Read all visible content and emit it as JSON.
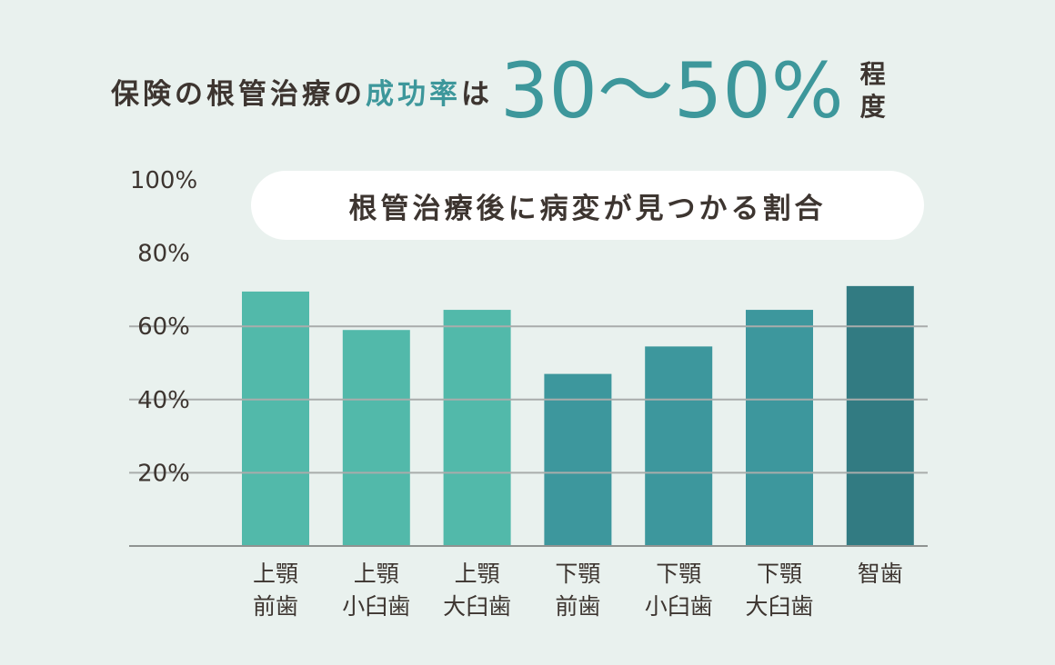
{
  "headline": {
    "prefix": "保険の根管治療の",
    "accent": "成功率",
    "particle": "は",
    "range": "30〜50%",
    "suffix_1": "程",
    "suffix_2": "度"
  },
  "colors": {
    "background": "#e9f1ee",
    "text_dark": "#3d3530",
    "accent": "#3d979b"
  },
  "chart_data": {
    "type": "bar",
    "title": "根管治療後に病変が見つかる割合",
    "categories": [
      [
        "上顎",
        "前歯"
      ],
      [
        "上顎",
        "小臼歯"
      ],
      [
        "上顎",
        "大臼歯"
      ],
      [
        "下顎",
        "前歯"
      ],
      [
        "下顎",
        "小臼歯"
      ],
      [
        "下顎",
        "大臼歯"
      ],
      [
        "智歯"
      ]
    ],
    "values": [
      69.5,
      59,
      64.5,
      47,
      54.5,
      64.5,
      71
    ],
    "bar_colors": [
      "#52b9aa",
      "#52b9aa",
      "#52b9aa",
      "#3d979d",
      "#3d979d",
      "#3d979d",
      "#327b82"
    ],
    "ylim": [
      0,
      100
    ],
    "yticks": [
      20,
      40,
      60,
      80,
      100
    ],
    "ytick_labels": [
      "20%",
      "40%",
      "60%",
      "80%",
      "100%"
    ],
    "gridlines": [
      20,
      40,
      60
    ],
    "xlabel": "",
    "ylabel": ""
  }
}
